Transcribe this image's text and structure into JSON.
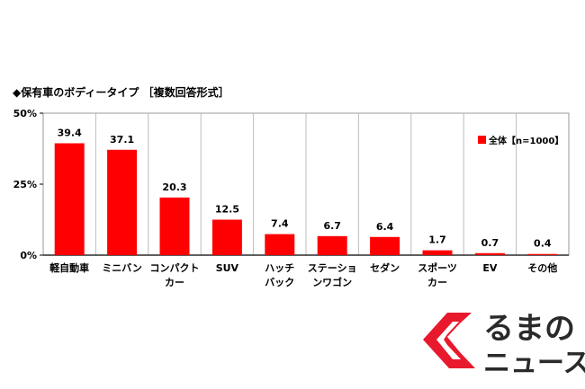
{
  "chart_data": {
    "type": "bar",
    "title": "◆保有車のボディータイプ ［複数回答形式］",
    "categories": [
      [
        "軽自動車"
      ],
      [
        "ミニバン"
      ],
      [
        "コンパクト",
        "カー"
      ],
      [
        "SUV"
      ],
      [
        "ハッチ",
        "バック"
      ],
      [
        "ステーショ",
        "ンワゴン"
      ],
      [
        "セダン"
      ],
      [
        "スポーツ",
        "カー"
      ],
      [
        "EV"
      ],
      [
        "その他"
      ]
    ],
    "series": [
      {
        "name": "全体【n=1000】",
        "values": [
          39.4,
          37.1,
          20.3,
          12.5,
          7.4,
          6.7,
          6.4,
          1.7,
          0.7,
          0.4
        ]
      }
    ],
    "value_labels": [
      "39.4",
      "37.1",
      "20.3",
      "12.5",
      "7.4",
      "6.7",
      "6.4",
      "1.7",
      "0.7",
      "0.4"
    ],
    "ylim": [
      0,
      50
    ],
    "yticks": [
      0,
      25,
      50
    ],
    "ytick_labels": [
      "0%",
      "25%",
      "50%"
    ],
    "grid": "vertical-separators",
    "legend_position": "top-right",
    "bar_color": "#ff0000"
  },
  "logo": {
    "line1": "るまの",
    "line2": "ニュース",
    "mark_color": "#e8192c"
  }
}
